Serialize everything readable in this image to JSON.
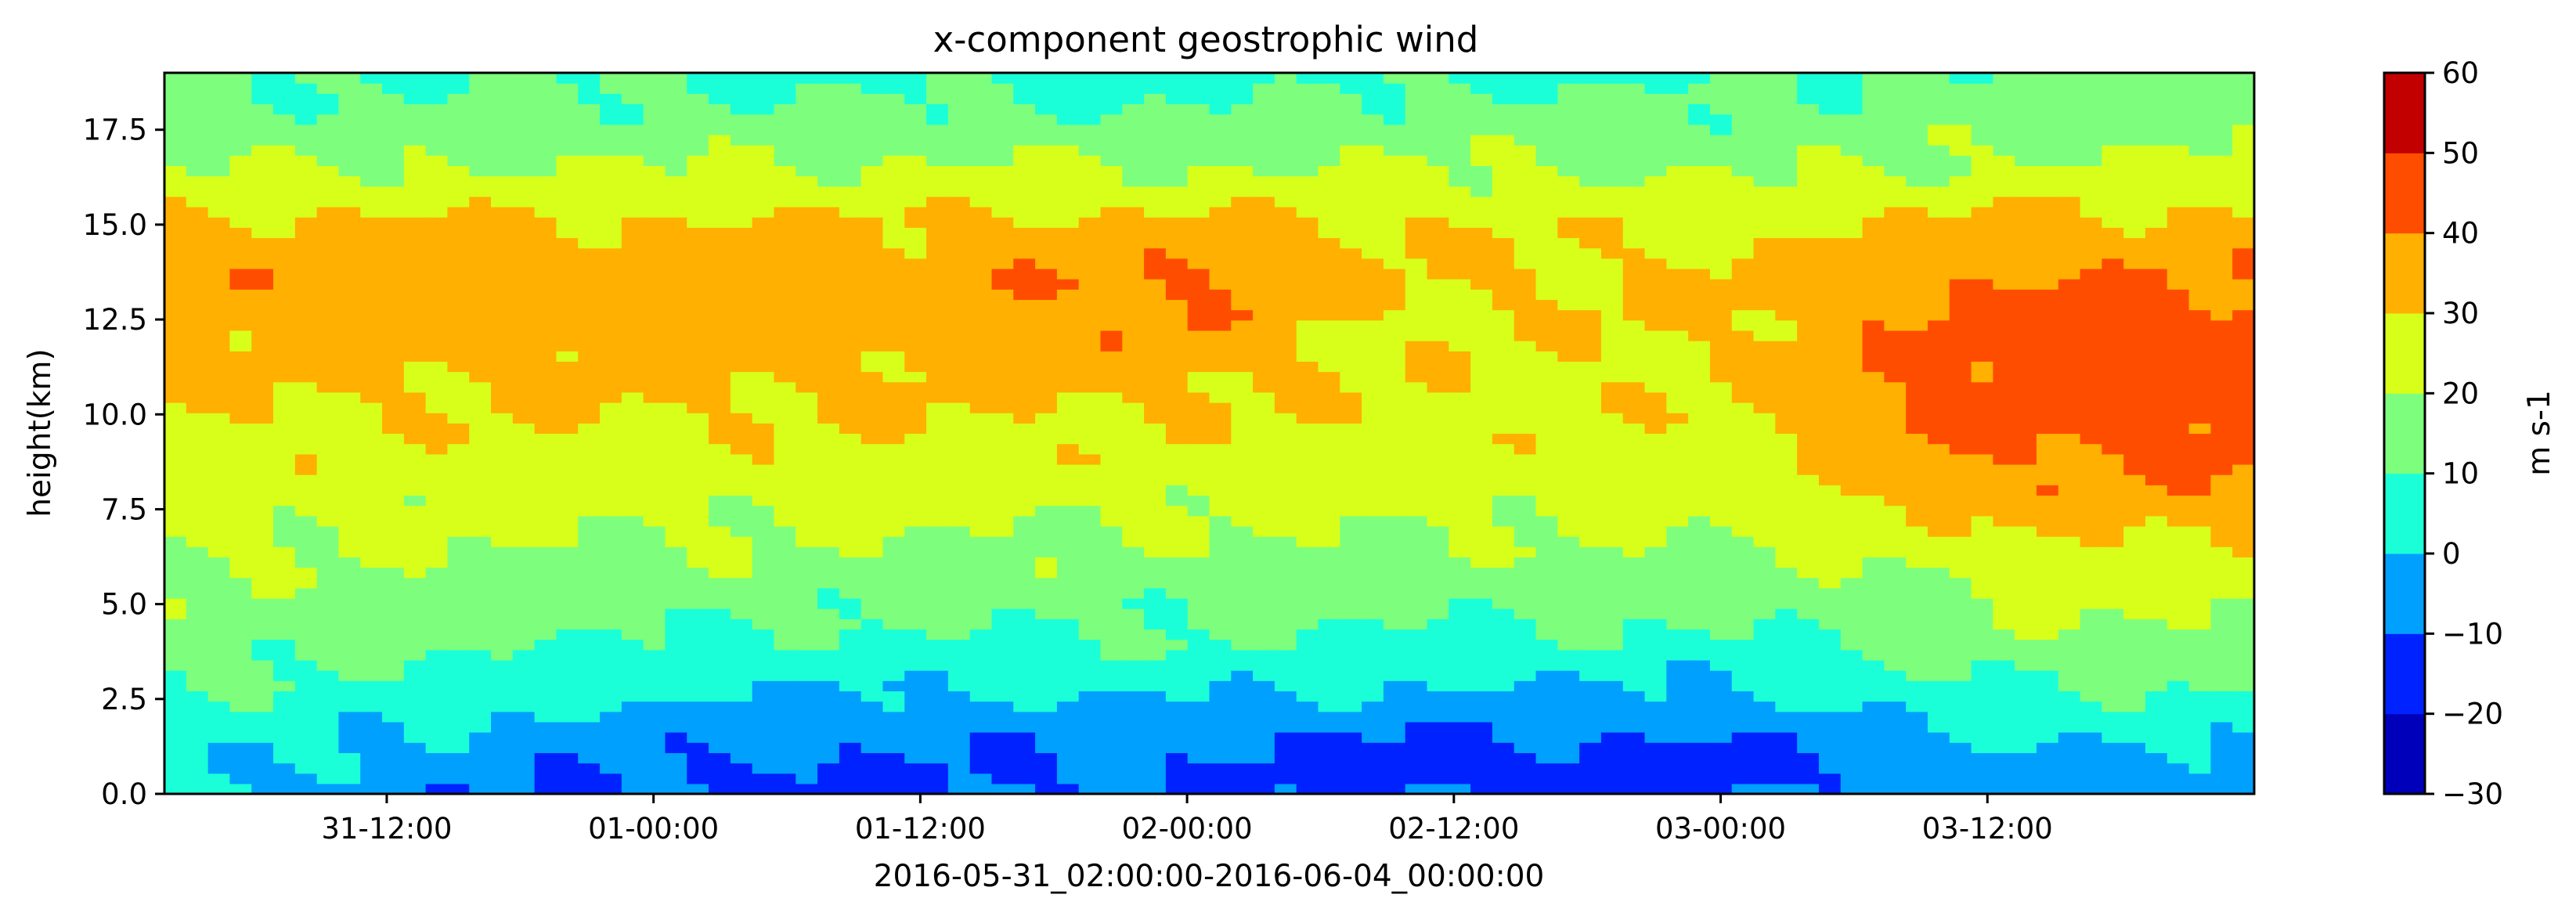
{
  "chart_data": {
    "type": "heatmap",
    "subtype": "filled-contour",
    "title": "x-component geostrophic wind",
    "xlabel": "2016-05-31_02:00:00-2016-06-04_00:00:00",
    "ylabel": "height(km)",
    "colorbar_label": "m s-1",
    "x_range": [
      "2016-05-31 02:00",
      "2016-06-04 00:00"
    ],
    "x_ticks": [
      "31-12:00",
      "01-00:00",
      "01-12:00",
      "02-00:00",
      "02-12:00",
      "03-00:00",
      "03-12:00"
    ],
    "y_range": [
      0,
      19
    ],
    "y_ticks": [
      "0.0",
      "2.5",
      "5.0",
      "7.5",
      "10.0",
      "12.5",
      "15.0",
      "17.5"
    ],
    "levels": [
      -30,
      -20,
      -10,
      0,
      10,
      20,
      30,
      40,
      50,
      60
    ],
    "level_labels": [
      "−30",
      "−20",
      "−10",
      "0",
      "10",
      "20",
      "30",
      "40",
      "50",
      "60"
    ],
    "colormap": "jet",
    "level_colors": [
      "#0000bb",
      "#0022ff",
      "#00a0ff",
      "#1affd8",
      "#7dff7d",
      "#d8ff1a",
      "#ffb000",
      "#ff4d00",
      "#c30000"
    ],
    "profile_times_hours": [
      0,
      18,
      30,
      46,
      54,
      70,
      80,
      86
    ],
    "profile_heights_km": [
      0,
      0.5,
      1.5,
      2.5,
      4,
      6,
      8,
      10,
      12,
      13.5,
      15,
      16.5,
      18,
      19
    ],
    "profiles_ms": [
      [
        2,
        2,
        5,
        10,
        15,
        20,
        25,
        29,
        33,
        38,
        33,
        20,
        12,
        10
      ],
      [
        -12,
        -10,
        -5,
        2,
        10,
        18,
        24,
        30,
        35,
        36,
        31,
        20,
        12,
        10
      ],
      [
        -12,
        -12,
        -8,
        -2,
        8,
        17,
        24,
        30,
        34,
        35,
        31,
        21,
        12,
        8
      ],
      [
        -8,
        -10,
        -8,
        0,
        10,
        16,
        24,
        30,
        38,
        42,
        33,
        20,
        10,
        6
      ],
      [
        -12,
        -15,
        -10,
        -2,
        8,
        17,
        24,
        28,
        28,
        30,
        31,
        21,
        13,
        8
      ],
      [
        -12,
        -15,
        -10,
        -3,
        8,
        17,
        24,
        28,
        30,
        32,
        26,
        18,
        12,
        8
      ],
      [
        -5,
        -5,
        0,
        7,
        15,
        20,
        35,
        44,
        42,
        40,
        33,
        20,
        15,
        12
      ],
      [
        -5,
        -5,
        2,
        8,
        18,
        26,
        38,
        45,
        46,
        40,
        33,
        22,
        15,
        12
      ]
    ]
  }
}
